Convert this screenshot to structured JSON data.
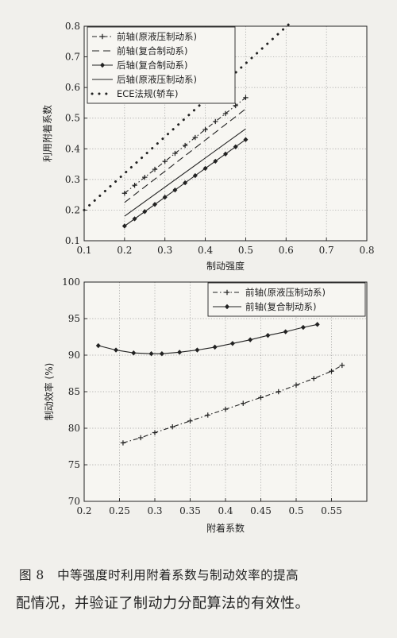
{
  "caption": {
    "figure_label": "图 8",
    "line1": "中等强度时利用附着系数与制动效率的提高",
    "line2": "配情况，并验证了制动力分配算法的有效性。"
  },
  "chart_data": [
    {
      "type": "line",
      "xlabel": "制动强度",
      "ylabel": "利用附着系数",
      "xlim": [
        0.1,
        0.8
      ],
      "ylim": [
        0.1,
        0.8
      ],
      "xticks": [
        "0.1",
        "0.2",
        "0.3",
        "0.4",
        "0.5",
        "0.6",
        "0.7",
        "0.8"
      ],
      "yticks": [
        "0.1",
        "0.2",
        "0.3",
        "0.4",
        "0.5",
        "0.6",
        "0.7",
        "0.8"
      ],
      "grid": true,
      "legend_position": "top-left",
      "series": [
        {
          "name": "前轴(原液压制动系)",
          "style": "dashdot-plus",
          "x": [
            0.2,
            0.5
          ],
          "y": [
            0.255,
            0.567
          ]
        },
        {
          "name": "前轴(复合制动系)",
          "style": "dash",
          "x": [
            0.2,
            0.5
          ],
          "y": [
            0.225,
            0.53
          ]
        },
        {
          "name": "后轴(复合制动系)",
          "style": "solid-diamond",
          "x": [
            0.2,
            0.5
          ],
          "y": [
            0.148,
            0.43
          ]
        },
        {
          "name": "后轴(原液压制动系)",
          "style": "solid",
          "x": [
            0.2,
            0.5
          ],
          "y": [
            0.18,
            0.465
          ]
        },
        {
          "name": "ECE法规(轿车)",
          "style": "dotted",
          "x": [
            0.1,
            0.61
          ],
          "y": [
            0.2,
            0.81
          ]
        }
      ]
    },
    {
      "type": "line",
      "xlabel": "附着系数",
      "ylabel": "制动效率  (%)",
      "xlim": [
        0.2,
        0.6
      ],
      "ylim": [
        70,
        100
      ],
      "xticks": [
        "0.2",
        "0.25",
        "0.3",
        "0.35",
        "0.4",
        "0.45",
        "0.5",
        "0.55"
      ],
      "yticks": [
        "70",
        "75",
        "80",
        "85",
        "90",
        "95",
        "100"
      ],
      "grid": true,
      "legend_position": "top-right",
      "series": [
        {
          "name": "前轴(原液压制动系)",
          "style": "dashdot-plus",
          "x": [
            0.255,
            0.28,
            0.3,
            0.325,
            0.35,
            0.375,
            0.4,
            0.425,
            0.45,
            0.475,
            0.5,
            0.525,
            0.55,
            0.565
          ],
          "y": [
            78.0,
            78.7,
            79.4,
            80.2,
            81.0,
            81.8,
            82.6,
            83.4,
            84.2,
            85.0,
            85.9,
            86.8,
            87.8,
            88.6
          ]
        },
        {
          "name": "前轴(复合制动系)",
          "style": "solid-diamond",
          "x": [
            0.22,
            0.245,
            0.27,
            0.295,
            0.31,
            0.335,
            0.36,
            0.385,
            0.41,
            0.435,
            0.46,
            0.485,
            0.51,
            0.53
          ],
          "y": [
            91.3,
            90.7,
            90.3,
            90.2,
            90.2,
            90.4,
            90.7,
            91.1,
            91.6,
            92.1,
            92.7,
            93.2,
            93.8,
            94.2
          ]
        }
      ]
    }
  ]
}
